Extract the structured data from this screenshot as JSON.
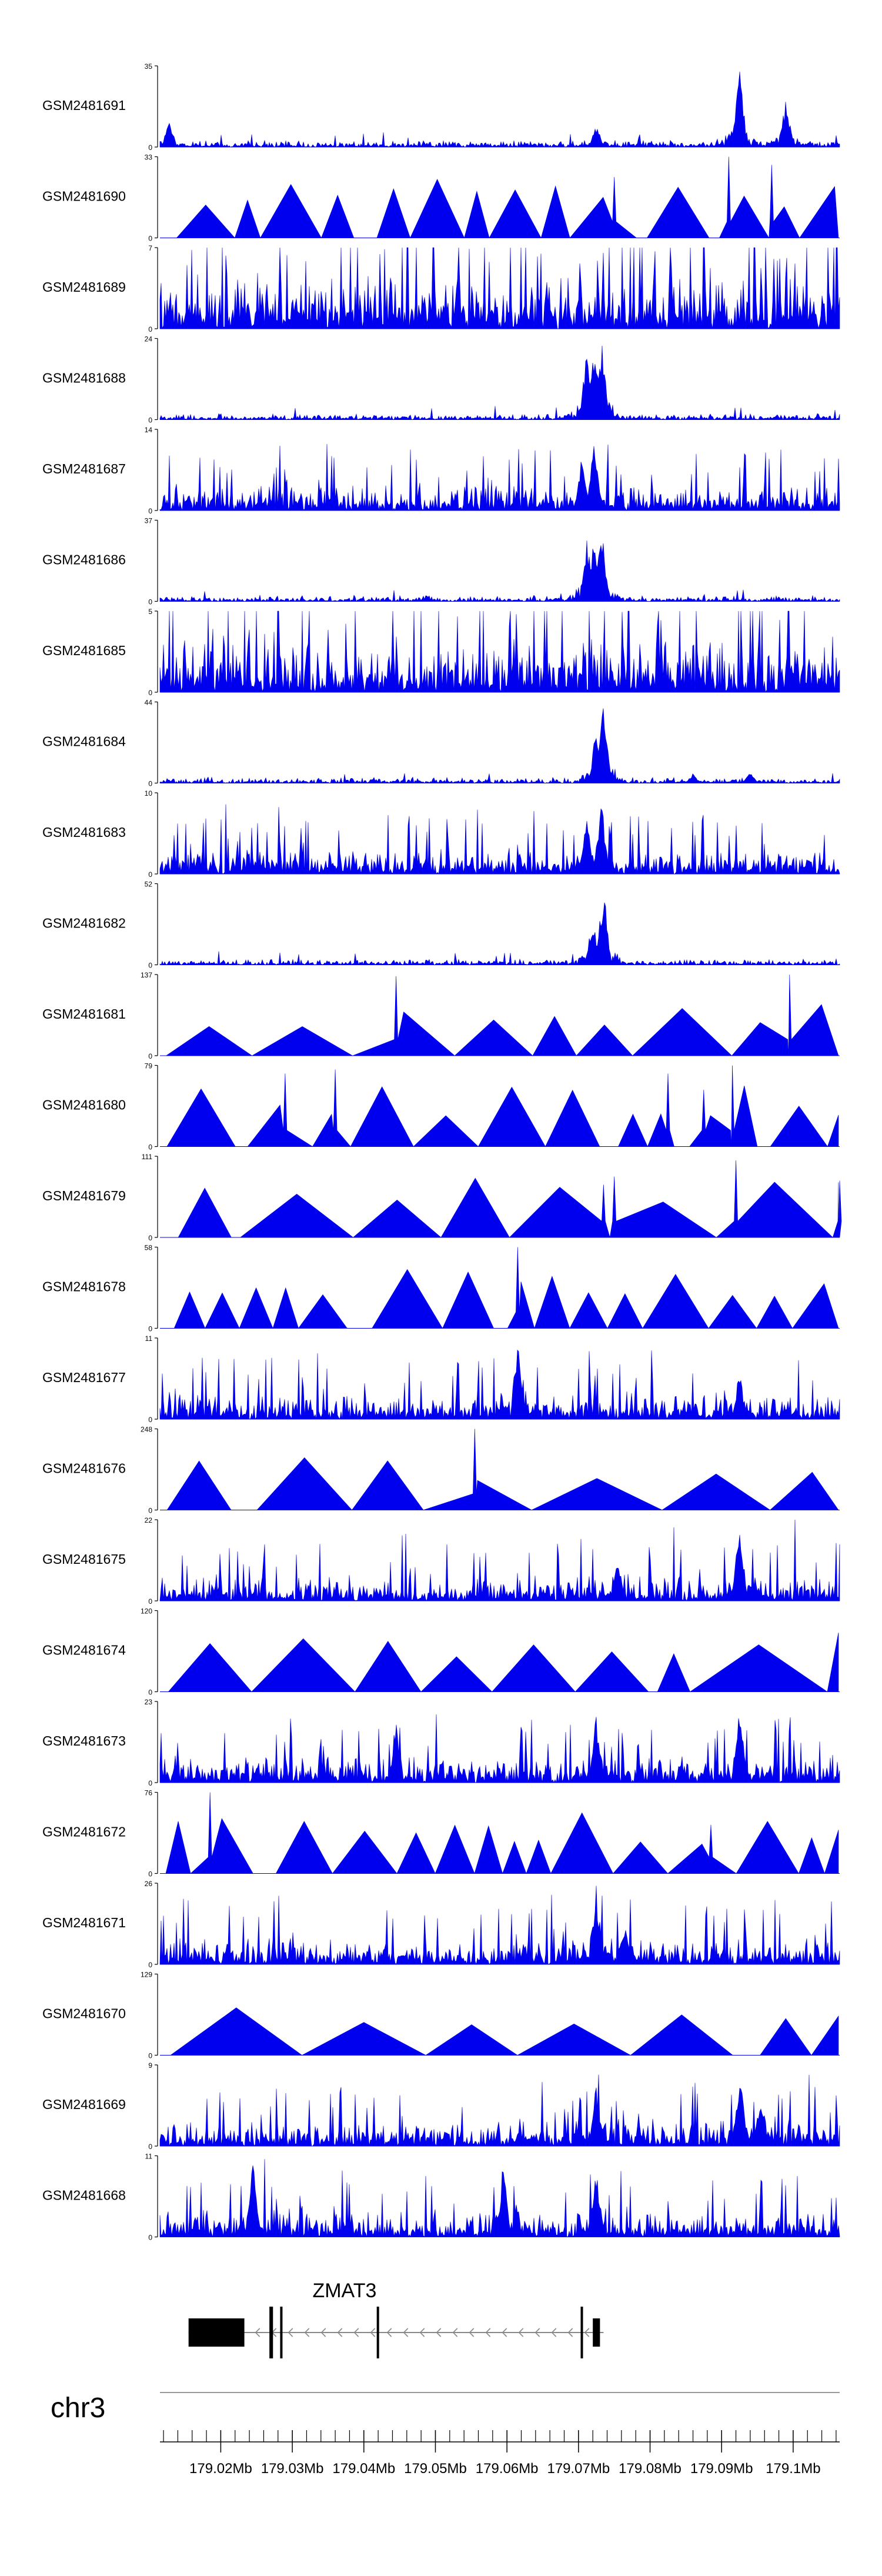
{
  "colors": {
    "signal": "#0000ee",
    "axis": "#000000",
    "gene": "#000000",
    "guide": "#999999"
  },
  "chart_data": {
    "type": "area",
    "tracks": [
      {
        "name": "GSM2481691",
        "ymax": 35,
        "pattern": "sparse",
        "peaks": [
          [
            179.0725,
            0.28
          ],
          [
            179.0925,
            1.0
          ],
          [
            179.099,
            0.62
          ],
          [
            179.0128,
            0.33
          ]
        ]
      },
      {
        "name": "GSM2481690",
        "ymax": 33,
        "pattern": "triangle",
        "spikes": [
          [
            179.091,
            1.0
          ],
          [
            179.097,
            0.9
          ],
          [
            179.075,
            0.75
          ]
        ]
      },
      {
        "name": "GSM2481689",
        "ymax": 7,
        "pattern": "dense",
        "peaks": []
      },
      {
        "name": "GSM2481688",
        "ymax": 24,
        "pattern": "peaky",
        "peaks": [
          [
            179.0712,
            0.88
          ],
          [
            179.0722,
            0.95
          ],
          [
            179.0732,
            1.0
          ]
        ]
      },
      {
        "name": "GSM2481687",
        "ymax": 14,
        "pattern": "noisy",
        "peaks": [
          [
            179.0722,
            1.0
          ],
          [
            179.0705,
            0.7
          ]
        ]
      },
      {
        "name": "GSM2481686",
        "ymax": 37,
        "pattern": "peaky",
        "peaks": [
          [
            179.0712,
            0.8
          ],
          [
            179.0722,
            0.92
          ],
          [
            179.0732,
            1.0
          ]
        ]
      },
      {
        "name": "GSM2481685",
        "ymax": 5,
        "pattern": "dense",
        "peaks": []
      },
      {
        "name": "GSM2481684",
        "ymax": 44,
        "pattern": "peaky",
        "peaks": [
          [
            179.0725,
            0.72
          ],
          [
            179.0735,
            1.0
          ],
          [
            179.086,
            0.12
          ],
          [
            179.094,
            0.15
          ]
        ]
      },
      {
        "name": "GSM2481683",
        "ymax": 10,
        "pattern": "noisy",
        "peaks": [
          [
            179.0732,
            1.0
          ],
          [
            179.0712,
            0.75
          ]
        ]
      },
      {
        "name": "GSM2481682",
        "ymax": 52,
        "pattern": "peaky",
        "peaks": [
          [
            179.0735,
            1.0
          ],
          [
            179.072,
            0.6
          ]
        ]
      },
      {
        "name": "GSM2481681",
        "ymax": 137,
        "pattern": "triangle",
        "spikes": [
          [
            179.0445,
            0.98
          ],
          [
            179.0995,
            1.0
          ]
        ]
      },
      {
        "name": "GSM2481680",
        "ymax": 79,
        "pattern": "triangle",
        "spikes": [
          [
            179.029,
            0.9
          ],
          [
            179.036,
            0.95
          ],
          [
            179.0825,
            0.9
          ],
          [
            179.0915,
            1.0
          ],
          [
            179.0875,
            0.7
          ]
        ]
      },
      {
        "name": "GSM2481679",
        "ymax": 111,
        "pattern": "triangle",
        "spikes": [
          [
            179.092,
            0.95
          ],
          [
            179.075,
            0.75
          ],
          [
            179.0735,
            0.65
          ],
          [
            179.1065,
            0.7
          ]
        ]
      },
      {
        "name": "GSM2481678",
        "ymax": 58,
        "pattern": "triangle",
        "spikes": [
          [
            179.0615,
            1.0
          ]
        ]
      },
      {
        "name": "GSM2481677",
        "ymax": 11,
        "pattern": "noisy",
        "peaks": [
          [
            179.0615,
            1.0
          ],
          [
            179.0925,
            0.6
          ]
        ]
      },
      {
        "name": "GSM2481676",
        "ymax": 248,
        "pattern": "triangle",
        "spikes": [
          [
            179.0555,
            1.0
          ]
        ]
      },
      {
        "name": "GSM2481675",
        "ymax": 22,
        "pattern": "noisy",
        "peaks": [
          [
            179.0925,
            1.0
          ],
          [
            179.0755,
            0.55
          ]
        ]
      },
      {
        "name": "GSM2481674",
        "ymax": 120,
        "pattern": "triangle",
        "spikes": []
      },
      {
        "name": "GSM2481673",
        "ymax": 23,
        "pattern": "noisy",
        "peaks": [
          [
            179.0925,
            1.0
          ],
          [
            179.0725,
            0.9
          ],
          [
            179.0445,
            0.75
          ]
        ]
      },
      {
        "name": "GSM2481672",
        "ymax": 76,
        "pattern": "triangle",
        "spikes": [
          [
            179.0185,
            1.0
          ],
          [
            179.0885,
            0.6
          ]
        ]
      },
      {
        "name": "GSM2481671",
        "ymax": 26,
        "pattern": "noisy",
        "peaks": [
          [
            179.0725,
            1.0
          ],
          [
            179.0765,
            0.55
          ]
        ]
      },
      {
        "name": "GSM2481670",
        "ymax": 129,
        "pattern": "triangle",
        "spikes": []
      },
      {
        "name": "GSM2481669",
        "ymax": 9,
        "pattern": "noisy",
        "peaks": [
          [
            179.0725,
            0.8
          ],
          [
            179.0925,
            1.0
          ],
          [
            179.0955,
            0.7
          ]
        ]
      },
      {
        "name": "GSM2481668",
        "ymax": 11,
        "pattern": "noisy",
        "peaks": [
          [
            179.0245,
            0.95
          ],
          [
            179.0595,
            0.85
          ],
          [
            179.0725,
            0.9
          ]
        ]
      }
    ],
    "ymin": 0,
    "xlim": [
      179.0115,
      179.1065
    ],
    "gene": {
      "name": "ZMAT3",
      "strand": "-",
      "start": 179.0155,
      "end": 179.0735,
      "exons": [
        [
          179.0155,
          179.0233,
          "thick"
        ],
        [
          179.0268,
          179.0273,
          "thin"
        ],
        [
          179.0283,
          179.0286,
          "thin"
        ],
        [
          179.0418,
          179.0421,
          "thin"
        ],
        [
          179.0703,
          179.0706,
          "thin"
        ],
        [
          179.072,
          179.073,
          "thick"
        ]
      ]
    },
    "chromosome": "chr3",
    "ticks": [
      {
        "pos": 179.02,
        "label": "179.02Mb"
      },
      {
        "pos": 179.03,
        "label": "179.03Mb"
      },
      {
        "pos": 179.04,
        "label": "179.04Mb"
      },
      {
        "pos": 179.05,
        "label": "179.05Mb"
      },
      {
        "pos": 179.06,
        "label": "179.06Mb"
      },
      {
        "pos": 179.07,
        "label": "179.07Mb"
      },
      {
        "pos": 179.08,
        "label": "179.08Mb"
      },
      {
        "pos": 179.09,
        "label": "179.09Mb"
      },
      {
        "pos": 179.1,
        "label": "179.1Mb"
      }
    ]
  }
}
